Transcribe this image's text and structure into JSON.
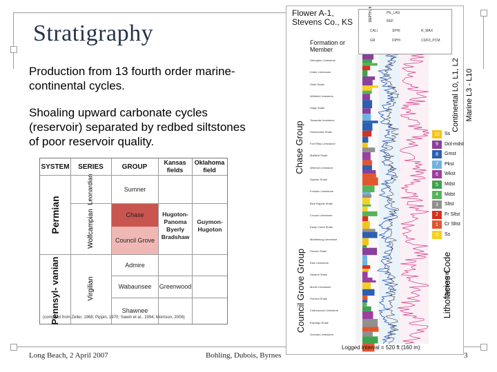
{
  "slide": {
    "title": "Stratigraphy",
    "bullets": [
      "Production from 13 fourth order marine-continental cycles.",
      "Shoaling upward carbonate cycles (reservoir) separated by redbed siltstones of poor reservoir quality."
    ]
  },
  "strat_table": {
    "headers": [
      "SYSTEM",
      "SERIES",
      "GROUP",
      "Kansas fields",
      "Oklahoma field"
    ],
    "systems": [
      "Permian",
      "Pennsyl- vanian"
    ],
    "series": [
      "Leonardian",
      "Wolfcampian",
      "Virgilian"
    ],
    "groups": [
      "Sumner",
      "Chase",
      "Council Grove",
      "Admire",
      "Wabaunsee",
      "Shawnee"
    ],
    "kansas_fields": [
      "Hugoton-Panoma",
      "Byerly",
      "Bradshaw",
      "Greenwood"
    ],
    "oklahoma_field": "Guymon-Hugoton",
    "credit": "(compiled from Zeller, 1968; Pippin, 1970; Sawin et al., 1994; Morrison, 2006)",
    "colors": {
      "chase": "#c9554f",
      "council": "#f0b8b4"
    }
  },
  "log_panel": {
    "well_title": [
      "Flower A-1,",
      "Stevens Co., KS"
    ],
    "formation_header": [
      "Formation or",
      "Member"
    ],
    "depth_label": "DEPTH, ft",
    "curve_labels": [
      "PE_LAG",
      "REF",
      "CALI",
      "SPHI",
      "R_MAX",
      "GR",
      "DPHI",
      "C0/F0_PCM"
    ],
    "formations": [
      "Herington Limestone",
      "Krider Limestone",
      "Odell Shale",
      "Winfield Limestone",
      "Gage Shale",
      "Towanda Limestone",
      "Holmesville Shale",
      "Fort Riley Limestone",
      "Matfield Shale",
      "Wreford Limestone",
      "Speiser Shale",
      "Funston Limestone",
      "Blue Rapids Shale",
      "Crouse Limestone",
      "Easly Creek Shale",
      "Middleburg Limestone",
      "Hooser Shale",
      "Eiss Limestone",
      "Stearns Shale",
      "Morrill Limestone",
      "Florena Shale",
      "Cottonwood Limestone",
      "Eskridge Shale",
      "Grenola Limestone"
    ],
    "groups": [
      "Chase Group",
      "Council Grove Group"
    ],
    "right_labels": [
      "Continental L0, L1, L2",
      "Marine L3 - L10",
      "Lithofacies Code",
      "(from core)"
    ],
    "facies": [
      {
        "code": "10",
        "label": "Ss",
        "color": "#f2c418"
      },
      {
        "code": "9",
        "label": "Dol-mdst",
        "color": "#8a3f9b"
      },
      {
        "code": "8",
        "label": "Gmst",
        "color": "#2d5fb0"
      },
      {
        "code": "7",
        "label": "Pkst",
        "color": "#6fb3e0"
      },
      {
        "code": "6",
        "label": "Wkst",
        "color": "#9c3fa0"
      },
      {
        "code": "5",
        "label": "Mdst",
        "color": "#3fa24c"
      },
      {
        "code": "4",
        "label": "Mdst",
        "color": "#56b35a"
      },
      {
        "code": "3",
        "label": "Sltst",
        "color": "#8f8f8f"
      },
      {
        "code": "2",
        "label": "Fr Sltst",
        "color": "#d9301f"
      },
      {
        "code": "1",
        "label": "Cr Sltst",
        "color": "#e0562e"
      },
      {
        "code": "0",
        "label": "Ss",
        "color": "#f4d020"
      }
    ],
    "logged_interval": "Logged interval = 520 ft (160 m)"
  },
  "footer": {
    "left": "Long Beach, 2 April 2007",
    "center": "Bohling, Dubois, Byrnes",
    "page": "3"
  }
}
